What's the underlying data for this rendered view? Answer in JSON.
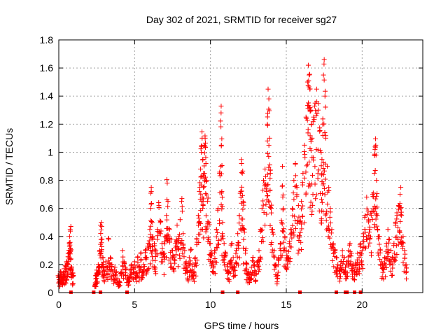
{
  "chart_data": {
    "type": "scatter",
    "title": "Day 302 of 2021, SRMTID for receiver sg27",
    "xlabel": "GPS time / hours",
    "ylabel": "SRMTID / TECUs",
    "xlim": [
      0,
      24
    ],
    "ylim": [
      0,
      1.8
    ],
    "x_ticks": [
      0,
      5,
      10,
      15,
      20
    ],
    "x_tick_labels": [
      "0",
      "5",
      "10",
      "15",
      "20"
    ],
    "y_ticks": [
      0,
      0.2,
      0.4,
      0.6,
      0.8,
      1.0,
      1.2,
      1.4,
      1.6,
      1.8
    ],
    "y_tick_labels": [
      "0",
      "0.2",
      "0.4",
      "0.6",
      "0.8",
      "1",
      "1.2",
      "1.4",
      "1.6",
      "1.8"
    ],
    "grid": true,
    "marker": "+",
    "series": [
      {
        "name": "SRMTID",
        "color": "#ff0000",
        "points": [
          [
            0.0,
            0.12
          ],
          [
            0.05,
            0.09
          ],
          [
            0.1,
            0.15
          ],
          [
            0.15,
            0.11
          ],
          [
            0.2,
            0.13
          ],
          [
            0.25,
            0.1
          ],
          [
            0.3,
            0.14
          ],
          [
            0.35,
            0.17
          ],
          [
            0.4,
            0.12
          ],
          [
            0.45,
            0.19
          ],
          [
            0.5,
            0.15
          ],
          [
            0.55,
            0.22
          ],
          [
            0.6,
            0.2
          ],
          [
            0.65,
            0.28
          ],
          [
            0.7,
            0.35
          ],
          [
            0.72,
            0.4
          ],
          [
            0.75,
            0.45
          ],
          [
            0.78,
            0.3
          ],
          [
            0.8,
            0.24
          ],
          [
            0.85,
            0.18
          ],
          [
            0.9,
            0.14
          ],
          [
            0.95,
            0.12
          ],
          [
            2.4,
            0.06
          ],
          [
            2.45,
            0.12
          ],
          [
            2.5,
            0.16
          ],
          [
            2.55,
            0.14
          ],
          [
            2.6,
            0.2
          ],
          [
            2.65,
            0.18
          ],
          [
            2.7,
            0.3
          ],
          [
            2.75,
            0.48
          ],
          [
            2.8,
            0.5
          ],
          [
            2.85,
            0.38
          ],
          [
            2.9,
            0.25
          ],
          [
            2.95,
            0.2
          ],
          [
            3.0,
            0.15
          ],
          [
            3.1,
            0.22
          ],
          [
            3.2,
            0.18
          ],
          [
            3.3,
            0.38
          ],
          [
            3.4,
            0.25
          ],
          [
            3.5,
            0.2
          ],
          [
            3.6,
            0.12
          ],
          [
            3.7,
            0.18
          ],
          [
            3.8,
            0.15
          ],
          [
            3.9,
            0.1
          ],
          [
            4.0,
            0.08
          ],
          [
            4.1,
            0.14
          ],
          [
            4.2,
            0.3
          ],
          [
            4.3,
            0.22
          ],
          [
            4.4,
            0.18
          ],
          [
            4.5,
            0.12
          ],
          [
            4.6,
            0.1
          ],
          [
            4.7,
            0.16
          ],
          [
            4.8,
            0.2
          ],
          [
            4.9,
            0.18
          ],
          [
            5.0,
            0.22
          ],
          [
            5.1,
            0.14
          ],
          [
            5.2,
            0.25
          ],
          [
            5.3,
            0.18
          ],
          [
            5.4,
            0.28
          ],
          [
            5.5,
            0.15
          ],
          [
            5.6,
            0.2
          ],
          [
            5.7,
            0.3
          ],
          [
            5.8,
            0.25
          ],
          [
            5.9,
            0.35
          ],
          [
            6.0,
            0.45
          ],
          [
            6.05,
            0.6
          ],
          [
            6.1,
            0.72
          ],
          [
            6.15,
            0.5
          ],
          [
            6.2,
            0.4
          ],
          [
            6.3,
            0.35
          ],
          [
            6.4,
            0.3
          ],
          [
            6.5,
            0.45
          ],
          [
            6.6,
            0.62
          ],
          [
            6.7,
            0.5
          ],
          [
            6.8,
            0.35
          ],
          [
            6.9,
            0.28
          ],
          [
            7.0,
            0.4
          ],
          [
            7.1,
            0.55
          ],
          [
            7.15,
            0.78
          ],
          [
            7.2,
            0.65
          ],
          [
            7.3,
            0.45
          ],
          [
            7.4,
            0.38
          ],
          [
            7.5,
            0.3
          ],
          [
            7.6,
            0.25
          ],
          [
            7.7,
            0.35
          ],
          [
            7.8,
            0.48
          ],
          [
            7.9,
            0.4
          ],
          [
            8.0,
            0.52
          ],
          [
            8.1,
            0.65
          ],
          [
            8.2,
            0.42
          ],
          [
            8.3,
            0.3
          ],
          [
            8.4,
            0.22
          ],
          [
            8.5,
            0.18
          ],
          [
            8.6,
            0.25
          ],
          [
            8.7,
            0.3
          ],
          [
            8.8,
            0.2
          ],
          [
            8.9,
            0.15
          ],
          [
            9.0,
            0.25
          ],
          [
            9.1,
            0.38
          ],
          [
            9.2,
            0.55
          ],
          [
            9.3,
            0.75
          ],
          [
            9.35,
            0.88
          ],
          [
            9.4,
            1.0
          ],
          [
            9.45,
            1.1
          ],
          [
            9.5,
            0.95
          ],
          [
            9.55,
            0.85
          ],
          [
            9.6,
            1.05
          ],
          [
            9.65,
            1.1
          ],
          [
            9.7,
            0.92
          ],
          [
            9.75,
            0.8
          ],
          [
            9.8,
            0.65
          ],
          [
            9.9,
            0.5
          ],
          [
            10.0,
            0.35
          ],
          [
            10.1,
            0.28
          ],
          [
            10.2,
            0.22
          ],
          [
            10.3,
            0.3
          ],
          [
            10.4,
            0.45
          ],
          [
            10.5,
            0.6
          ],
          [
            10.6,
            0.85
          ],
          [
            10.7,
            1.28
          ],
          [
            10.72,
            1.05
          ],
          [
            10.75,
            0.72
          ],
          [
            10.8,
            0.5
          ],
          [
            10.9,
            0.35
          ],
          [
            11.0,
            0.28
          ],
          [
            11.1,
            0.2
          ],
          [
            11.2,
            0.15
          ],
          [
            11.3,
            0.22
          ],
          [
            11.4,
            0.35
          ],
          [
            11.5,
            0.25
          ],
          [
            11.6,
            0.18
          ],
          [
            11.7,
            0.3
          ],
          [
            11.8,
            0.42
          ],
          [
            11.9,
            0.55
          ],
          [
            12.0,
            0.72
          ],
          [
            12.05,
            0.92
          ],
          [
            12.1,
            0.85
          ],
          [
            12.15,
            0.65
          ],
          [
            12.2,
            0.45
          ],
          [
            12.3,
            0.3
          ],
          [
            12.4,
            0.2
          ],
          [
            12.5,
            0.15
          ],
          [
            12.6,
            0.12
          ],
          [
            12.7,
            0.18
          ],
          [
            12.8,
            0.25
          ],
          [
            12.9,
            0.2
          ],
          [
            13.0,
            0.15
          ],
          [
            13.1,
            0.22
          ],
          [
            13.2,
            0.3
          ],
          [
            13.3,
            0.45
          ],
          [
            13.4,
            0.6
          ],
          [
            13.5,
            0.8
          ],
          [
            13.6,
            0.88
          ],
          [
            13.7,
            0.72
          ],
          [
            13.75,
            1.2
          ],
          [
            13.8,
            1.45
          ],
          [
            13.85,
            1.38
          ],
          [
            13.9,
            1.1
          ],
          [
            13.95,
            0.85
          ],
          [
            14.0,
            0.6
          ],
          [
            14.1,
            0.45
          ],
          [
            14.2,
            0.3
          ],
          [
            14.3,
            0.2
          ],
          [
            14.4,
            0.12
          ],
          [
            14.5,
            0.25
          ],
          [
            14.6,
            0.35
          ],
          [
            14.7,
            0.5
          ],
          [
            14.75,
            0.9
          ],
          [
            14.8,
            0.6
          ],
          [
            14.9,
            0.4
          ],
          [
            15.0,
            0.3
          ],
          [
            15.1,
            0.25
          ],
          [
            15.2,
            0.35
          ],
          [
            15.3,
            0.45
          ],
          [
            15.4,
            0.6
          ],
          [
            15.5,
            0.8
          ],
          [
            15.6,
            0.92
          ],
          [
            15.7,
            0.75
          ],
          [
            15.8,
            0.62
          ],
          [
            15.9,
            0.5
          ],
          [
            16.0,
            0.65
          ],
          [
            16.1,
            0.85
          ],
          [
            16.2,
            1.05
          ],
          [
            16.3,
            1.25
          ],
          [
            16.4,
            1.5
          ],
          [
            16.45,
            1.62
          ],
          [
            16.5,
            1.55
          ],
          [
            16.55,
            1.45
          ],
          [
            16.6,
            1.3
          ],
          [
            16.65,
            1.2
          ],
          [
            16.7,
            1.1
          ],
          [
            16.8,
            1.25
          ],
          [
            16.9,
            1.35
          ],
          [
            17.0,
            1.45
          ],
          [
            17.1,
            1.3
          ],
          [
            17.2,
            1.15
          ],
          [
            17.3,
            1.0
          ],
          [
            17.35,
            0.95
          ],
          [
            17.4,
            1.2
          ],
          [
            17.45,
            1.55
          ],
          [
            17.5,
            1.66
          ],
          [
            17.55,
            1.4
          ],
          [
            17.6,
            1.1
          ],
          [
            17.7,
            0.9
          ],
          [
            17.8,
            0.75
          ],
          [
            17.9,
            0.6
          ],
          [
            18.0,
            0.45
          ],
          [
            18.1,
            0.35
          ],
          [
            18.2,
            0.3
          ],
          [
            18.3,
            0.25
          ],
          [
            18.4,
            0.2
          ],
          [
            18.5,
            0.15
          ],
          [
            18.6,
            0.22
          ],
          [
            18.7,
            0.3
          ],
          [
            18.8,
            0.25
          ],
          [
            18.9,
            0.18
          ],
          [
            19.0,
            0.22
          ],
          [
            19.1,
            0.3
          ],
          [
            19.2,
            0.35
          ],
          [
            19.3,
            0.28
          ],
          [
            19.4,
            0.2
          ],
          [
            19.5,
            0.15
          ],
          [
            19.6,
            0.2
          ],
          [
            19.7,
            0.28
          ],
          [
            19.8,
            0.25
          ],
          [
            19.9,
            0.35
          ],
          [
            20.0,
            0.3
          ],
          [
            20.1,
            0.4
          ],
          [
            20.2,
            0.55
          ],
          [
            20.3,
            0.68
          ],
          [
            20.4,
            0.58
          ],
          [
            20.5,
            0.45
          ],
          [
            20.6,
            0.55
          ],
          [
            20.7,
            0.7
          ],
          [
            20.8,
            0.85
          ],
          [
            20.85,
            1.02
          ],
          [
            20.9,
            1.05
          ],
          [
            20.95,
            0.8
          ],
          [
            21.0,
            0.55
          ],
          [
            21.1,
            0.4
          ],
          [
            21.2,
            0.3
          ],
          [
            21.3,
            0.22
          ],
          [
            21.4,
            0.18
          ],
          [
            21.5,
            0.25
          ],
          [
            21.6,
            0.35
          ],
          [
            21.7,
            0.45
          ],
          [
            21.8,
            0.38
          ],
          [
            21.9,
            0.3
          ],
          [
            22.0,
            0.25
          ],
          [
            22.1,
            0.35
          ],
          [
            22.2,
            0.48
          ],
          [
            22.3,
            0.55
          ],
          [
            22.4,
            0.62
          ],
          [
            22.5,
            0.7
          ],
          [
            22.55,
            0.75
          ],
          [
            22.6,
            0.55
          ],
          [
            22.7,
            0.4
          ],
          [
            22.8,
            0.3
          ],
          [
            22.9,
            0.2
          ]
        ]
      }
    ],
    "zero_markers_x": [
      0.8,
      2.3,
      2.75,
      4.5,
      10.8,
      11.8,
      15.9,
      18.3,
      18.9,
      19.0,
      19.5,
      19.9
    ]
  }
}
